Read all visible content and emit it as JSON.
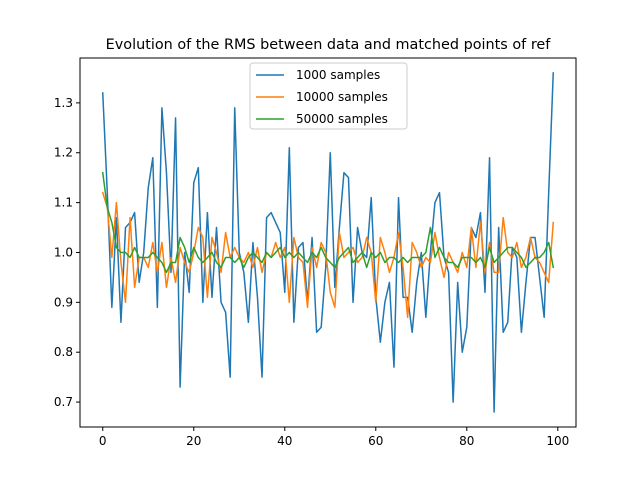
{
  "chart_data": {
    "type": "line",
    "title": "Evolution of the RMS between data and matched points of ref",
    "xlabel": "",
    "ylabel": "",
    "xlim": [
      -5,
      104
    ],
    "ylim": [
      0.65,
      1.39
    ],
    "xticks": [
      0,
      20,
      40,
      60,
      80,
      100
    ],
    "yticks": [
      0.7,
      0.8,
      0.9,
      1.0,
      1.1,
      1.2,
      1.3
    ],
    "ytick_labels": [
      "0.7",
      "0.8",
      "0.9",
      "1.0",
      "1.1",
      "1.2",
      "1.3"
    ],
    "grid": false,
    "legend_position": "top-center",
    "x": [
      0,
      1,
      2,
      3,
      4,
      5,
      6,
      7,
      8,
      9,
      10,
      11,
      12,
      13,
      14,
      15,
      16,
      17,
      18,
      19,
      20,
      21,
      22,
      23,
      24,
      25,
      26,
      27,
      28,
      29,
      30,
      31,
      32,
      33,
      34,
      35,
      36,
      37,
      38,
      39,
      40,
      41,
      42,
      43,
      44,
      45,
      46,
      47,
      48,
      49,
      50,
      51,
      52,
      53,
      54,
      55,
      56,
      57,
      58,
      59,
      60,
      61,
      62,
      63,
      64,
      65,
      66,
      67,
      68,
      69,
      70,
      71,
      72,
      73,
      74,
      75,
      76,
      77,
      78,
      79,
      80,
      81,
      82,
      83,
      84,
      85,
      86,
      87,
      88,
      89,
      90,
      91,
      92,
      93,
      94,
      95,
      96,
      97,
      98,
      99
    ],
    "series": [
      {
        "name": "1000 samples",
        "color": "#1f77b4",
        "values": [
          1.32,
          1.12,
          0.89,
          1.07,
          0.86,
          1.05,
          1.06,
          1.08,
          0.94,
          1.0,
          1.13,
          1.19,
          0.89,
          1.29,
          1.16,
          0.96,
          1.27,
          0.73,
          1.0,
          0.92,
          1.14,
          1.17,
          0.9,
          1.08,
          0.91,
          1.05,
          0.9,
          0.88,
          0.75,
          1.29,
          1.0,
          0.96,
          0.86,
          1.02,
          0.91,
          0.75,
          1.07,
          1.08,
          1.06,
          1.04,
          0.92,
          1.21,
          0.86,
          1.01,
          1.02,
          0.9,
          1.03,
          0.84,
          0.85,
          0.97,
          1.2,
          0.93,
          1.05,
          1.16,
          1.15,
          0.9,
          1.05,
          1.0,
          0.99,
          1.11,
          0.91,
          0.82,
          0.9,
          0.94,
          0.77,
          1.11,
          0.91,
          0.91,
          0.84,
          0.94,
          1.0,
          0.87,
          1.0,
          1.1,
          1.12,
          0.99,
          0.96,
          0.7,
          0.94,
          0.8,
          0.85,
          1.05,
          1.03,
          1.08,
          0.92,
          1.19,
          0.68,
          1.05,
          0.84,
          0.86,
          1.01,
          0.99,
          0.84,
          0.94,
          1.03,
          1.03,
          0.95,
          0.87,
          1.12,
          1.36
        ]
      },
      {
        "name": "10000 samples",
        "color": "#ff7f0e",
        "values": [
          1.12,
          1.09,
          0.99,
          1.1,
          0.98,
          0.9,
          1.07,
          0.93,
          0.99,
          0.99,
          0.97,
          1.02,
          0.96,
          1.02,
          0.93,
          0.99,
          0.94,
          1.01,
          0.98,
          0.96,
          1.0,
          1.05,
          1.03,
          0.91,
          1.03,
          1.0,
          0.96,
          1.04,
          0.99,
          1.01,
          0.99,
          0.98,
          1.0,
          0.97,
          1.01,
          0.96,
          1.0,
          0.99,
          1.02,
          0.99,
          1.01,
          0.9,
          1.03,
          0.99,
          0.98,
          0.89,
          1.01,
          0.97,
          1.02,
          1.0,
          0.92,
          0.89,
          1.04,
          0.99,
          1.0,
          1.01,
          0.98,
          0.99,
          1.03,
          1.0,
          0.9,
          1.03,
          1.0,
          0.96,
          0.99,
          1.04,
          0.97,
          0.87,
          1.02,
          1.0,
          0.97,
          0.99,
          0.98,
          1.04,
          0.99,
          0.95,
          1.0,
          0.98,
          0.96,
          1.0,
          0.97,
          1.05,
          0.97,
          1.06,
          0.96,
          1.02,
          0.96,
          0.96,
          1.07,
          1.0,
          0.99,
          1.02,
          0.97,
          0.99,
          1.03,
          0.99,
          0.98,
          0.96,
          0.94,
          1.06
        ]
      },
      {
        "name": "50000 samples",
        "color": "#2ca02c",
        "values": [
          1.16,
          1.09,
          1.06,
          1.01,
          1.0,
          1.0,
          0.99,
          1.01,
          0.99,
          0.99,
          0.99,
          1.0,
          0.99,
          0.98,
          0.96,
          0.98,
          0.98,
          1.03,
          1.01,
          0.98,
          1.01,
          0.99,
          0.98,
          0.99,
          1.0,
          0.98,
          0.97,
          0.99,
          0.99,
          0.98,
          0.99,
          0.97,
          0.99,
          1.0,
          0.99,
          0.98,
          1.0,
          0.99,
          1.0,
          1.01,
          0.99,
          1.0,
          0.99,
          1.0,
          0.99,
          0.98,
          1.0,
          0.99,
          1.01,
          0.99,
          0.98,
          0.97,
          0.99,
          1.0,
          1.01,
          0.98,
          0.99,
          1.0,
          0.97,
          1.0,
          0.99,
          1.0,
          0.98,
          0.99,
          0.99,
          0.98,
          0.99,
          0.98,
          0.99,
          0.99,
          0.99,
          1.0,
          1.05,
          0.99,
          1.01,
          0.99,
          0.98,
          0.98,
          0.97,
          0.99,
          0.99,
          0.99,
          0.98,
          0.99,
          0.97,
          1.01,
          0.98,
          0.99,
          1.0,
          1.01,
          1.01,
          1.0,
          0.99,
          0.97,
          0.98,
          0.99,
          0.99,
          1.0,
          1.02,
          0.97
        ]
      }
    ]
  }
}
